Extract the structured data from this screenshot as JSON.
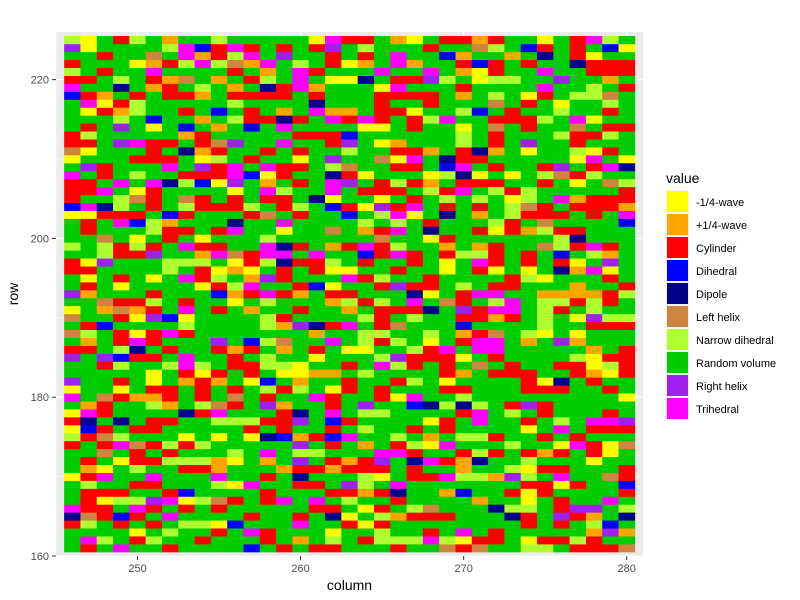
{
  "chart_data": {
    "type": "heatmap",
    "title": "",
    "xlabel": "column",
    "ylabel": "row",
    "xlim": [
      245,
      281
    ],
    "ylim": [
      160,
      226
    ],
    "x_range": [
      246,
      280
    ],
    "y_range": [
      161,
      225
    ],
    "xticks": [
      250,
      260,
      270,
      280
    ],
    "yticks": [
      160,
      180,
      200,
      220
    ],
    "grid": true,
    "panel_background": "#EBEBEB",
    "legend_title": "value",
    "legend_position": "right",
    "categories": [
      {
        "name": "-1/4-wave",
        "color": "#FFFF00",
        "weight": 5
      },
      {
        "name": "+1/4-wave",
        "color": "#FFA500",
        "weight": 5
      },
      {
        "name": "Cylinder",
        "color": "#FF0000",
        "weight": 22
      },
      {
        "name": "Dihedral",
        "color": "#0000FF",
        "weight": 2
      },
      {
        "name": "Dipole",
        "color": "#00008B",
        "weight": 2
      },
      {
        "name": "Left helix",
        "color": "#CD853F",
        "weight": 2
      },
      {
        "name": "Narrow dihedral",
        "color": "#ADFF2F",
        "weight": 9
      },
      {
        "name": "Random volume",
        "color": "#00CD00",
        "weight": 45
      },
      {
        "name": "Right helix",
        "color": "#A020F0",
        "weight": 2
      },
      {
        "name": "Trihedral",
        "color": "#FF00FF",
        "weight": 6
      }
    ]
  }
}
